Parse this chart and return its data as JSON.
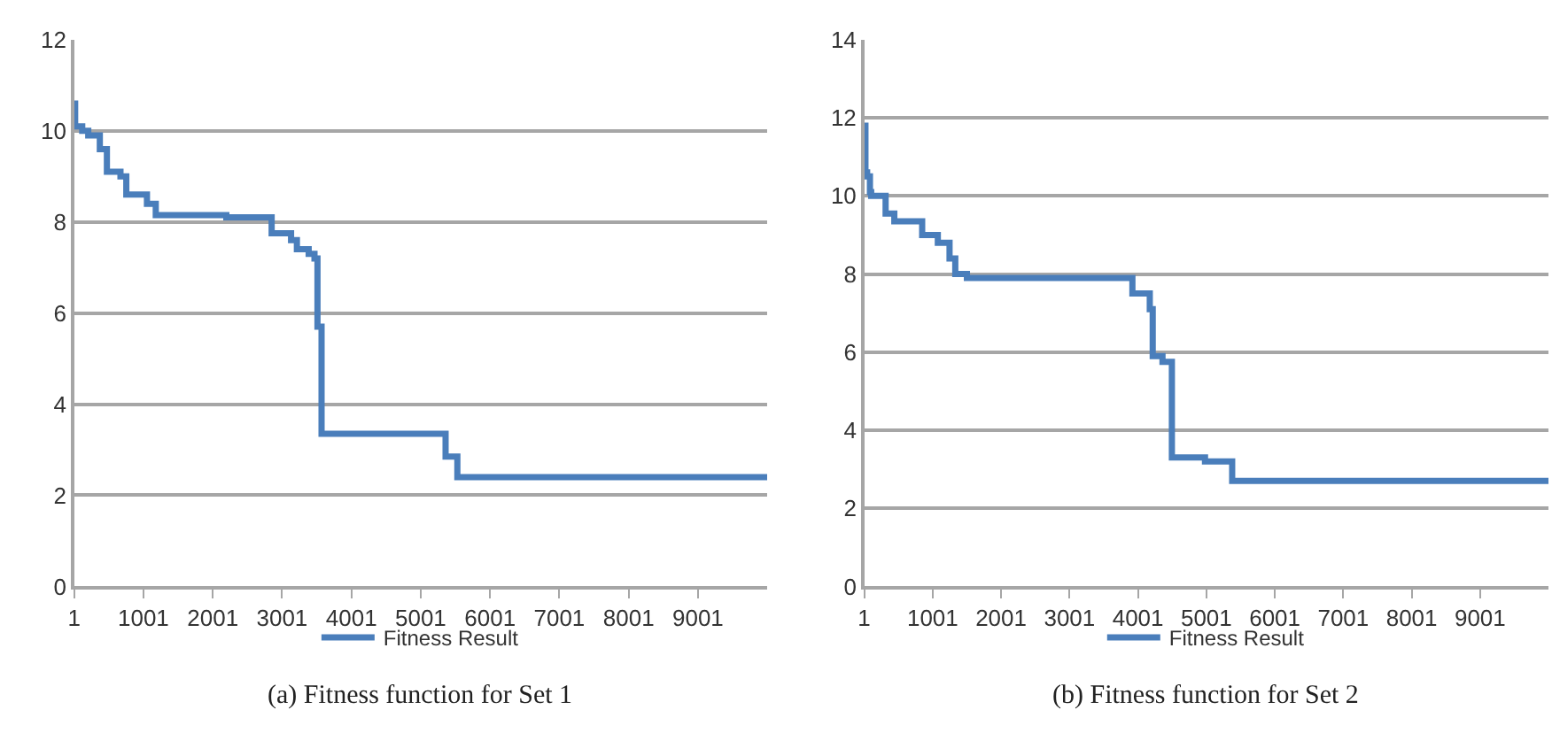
{
  "chart_data": [
    {
      "type": "step",
      "grid": "y",
      "legend": "bottom",
      "xlim": [
        1,
        10000
      ],
      "xticks": [
        1,
        1001,
        2001,
        3001,
        4001,
        5001,
        6001,
        7001,
        8001,
        9001
      ],
      "ylim": [
        0,
        12
      ],
      "yticks": [
        0,
        2,
        4,
        6,
        8,
        10,
        12
      ],
      "series": [
        {
          "name": "Fitness Result",
          "color": "#4a7ebb",
          "x": [
            1,
            16,
            118,
            205,
            372,
            474,
            670,
            754,
            1052,
            1179,
            2197,
            2851,
            3131,
            3215,
            3385,
            3469,
            3512,
            3571,
            5360,
            5530,
            10000
          ],
          "values": [
            10.6,
            10.1,
            10.0,
            9.9,
            9.6,
            9.1,
            9.0,
            8.6,
            8.4,
            8.15,
            8.1,
            7.75,
            7.6,
            7.4,
            7.3,
            7.2,
            5.7,
            3.35,
            2.85,
            2.4,
            2.4
          ]
        }
      ],
      "annotations": [
        "(a) Fitness function for Set 1"
      ]
    },
    {
      "type": "step",
      "grid": "y",
      "legend": "bottom",
      "xlim": [
        1,
        10000
      ],
      "xticks": [
        1,
        1001,
        2001,
        3001,
        4001,
        5001,
        6001,
        7001,
        8001,
        9001
      ],
      "ylim": [
        0,
        14
      ],
      "yticks": [
        0,
        2,
        4,
        6,
        8,
        10,
        12,
        14
      ],
      "series": [
        {
          "name": "Fitness Result",
          "color": "#4a7ebb",
          "x": [
            1,
            19,
            44,
            85,
            103,
            314,
            441,
            848,
            1077,
            1248,
            1332,
            1502,
            1757,
            3920,
            4174,
            4217,
            4360,
            4497,
            4981,
            5378,
            10000
          ],
          "values": [
            11.8,
            10.6,
            10.5,
            10.1,
            10.0,
            9.55,
            9.35,
            9.0,
            8.8,
            8.4,
            8.0,
            7.9,
            7.9,
            7.5,
            7.1,
            5.9,
            5.75,
            3.3,
            3.2,
            2.7,
            2.7
          ]
        }
      ],
      "annotations": [
        "(b) Fitness function for Set 2"
      ]
    }
  ]
}
